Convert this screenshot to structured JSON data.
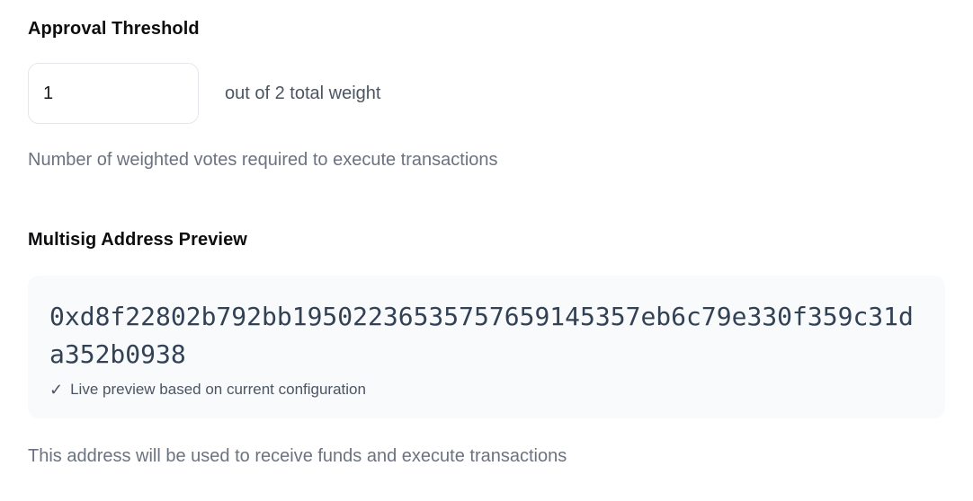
{
  "approval_threshold": {
    "label": "Approval Threshold",
    "input_value": "1",
    "suffix": "out of 2 total weight",
    "helper": "Number of weighted votes required to execute transactions"
  },
  "multisig_preview": {
    "label": "Multisig Address Preview",
    "address": "0xd8f22802b792bb19502236535757659145357eb6c79e330f359c31da352b0938",
    "check_icon": "✓",
    "live_note": "Live preview based on current configuration",
    "helper": "This address will be used to receive funds and execute transactions"
  },
  "colors": {
    "heading_text": "#0d0d0f",
    "suffix_text": "#4b5563",
    "helper_text": "#6b7280",
    "address_text": "#334155",
    "code_block_bg": "#f8fafc",
    "input_border": "#e4e7ec",
    "page_bg": "#ffffff"
  }
}
